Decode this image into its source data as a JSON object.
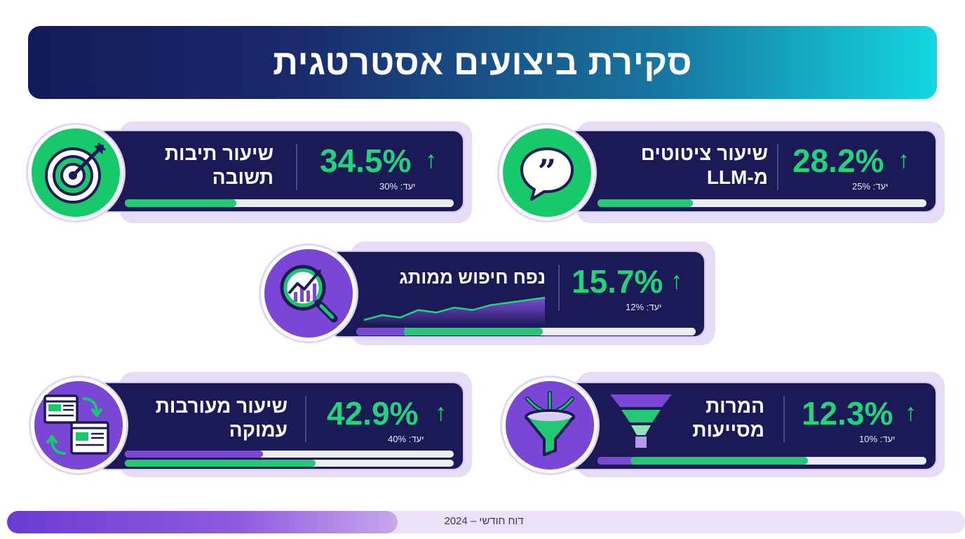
{
  "header": {
    "title": "סקירת ביצועים אסטרטגית"
  },
  "cards": {
    "llm_citations": {
      "label_line1": "שיעור ציטוטים",
      "label_line2": "מ-LLM",
      "value": "28.2%",
      "target": "יעד: 25%",
      "progress": 0.29,
      "icon": "quote-bubble-icon"
    },
    "answer_box": {
      "label_line1": "שיעור תיבות",
      "label_line2": "תשובה",
      "value": "34.5%",
      "target": "יעד: 30%",
      "progress": 0.34,
      "icon": "target-icon"
    },
    "branded_search": {
      "label_line1": "נפח חיפוש ממותג",
      "value": "15.7%",
      "target": "יעד: 12%",
      "progress": 0.55,
      "progress_secondary": 0.15,
      "icon": "search-chart-icon",
      "sparkline": [
        2,
        4,
        3,
        6,
        5,
        7,
        6,
        8,
        9,
        10,
        11
      ]
    },
    "assisted_conversions": {
      "label_line1": "המרות",
      "label_line2": "מסייעות",
      "value": "12.3%",
      "target": "יעד: 10%",
      "progress": 0.64,
      "progress_secondary": 0.1,
      "icon": "funnel-icon"
    },
    "deep_engagement": {
      "label_line1": "שיעור מעורבות",
      "label_line2": "עמוקה",
      "value": "42.9%",
      "target": "יעד: 40%",
      "progress": 0.58,
      "progress_secondary": 0.42,
      "icon": "web-pages-icon"
    }
  },
  "arrow_symbol": "↑",
  "footer": {
    "text": "דוח חודשי – 2024",
    "progress": 0.41
  },
  "colors": {
    "panel": "#1b1a57",
    "accent_green": "#22d37a",
    "accent_purple": "#7a46d6",
    "header_start": "#131a5a",
    "header_end": "#14d6e2"
  }
}
